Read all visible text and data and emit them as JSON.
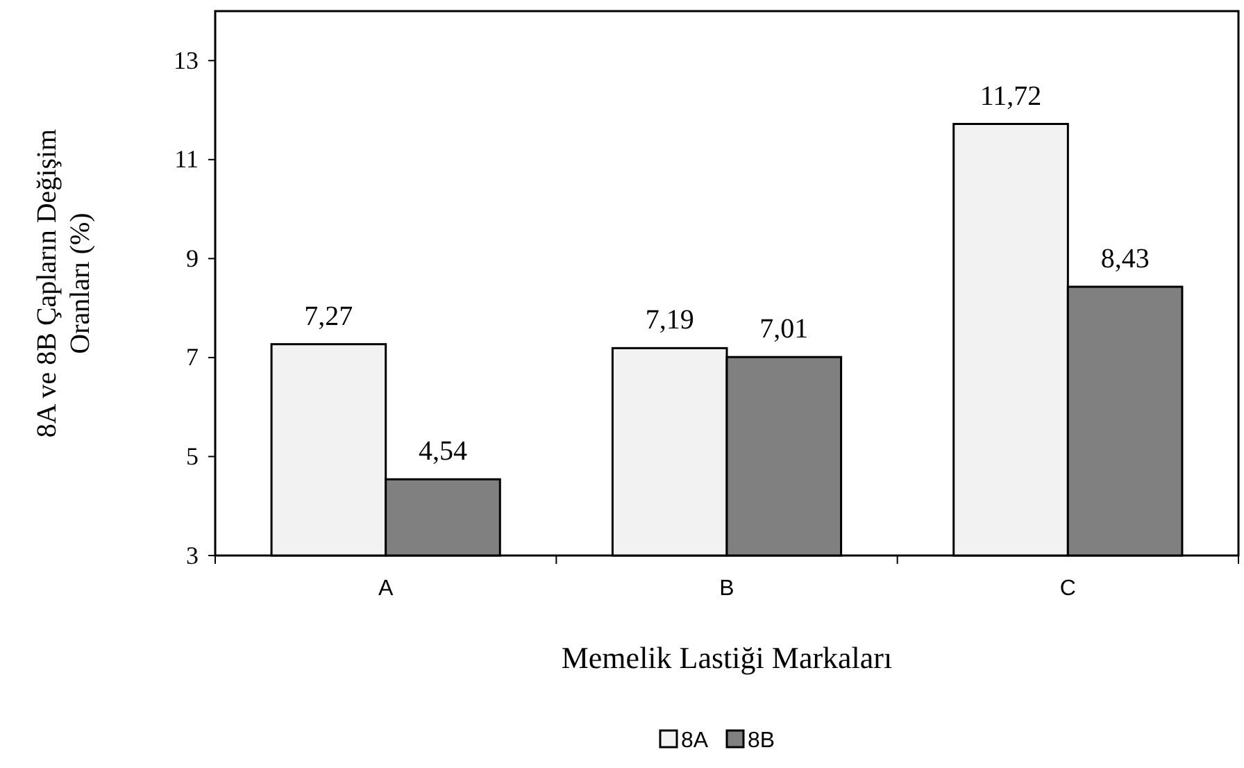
{
  "chart_data": {
    "type": "bar",
    "xlabel": "Memelik Lastiği Markaları",
    "ylabel": "8A ve 8B Çapların Değişim\nOranları (%)",
    "categories": [
      "A",
      "B",
      "C"
    ],
    "series": [
      {
        "name": "8A",
        "color": "#f2f2f2",
        "values": [
          7.27,
          7.19,
          11.72
        ],
        "value_labels": [
          "7,27",
          "7,19",
          "11,72"
        ]
      },
      {
        "name": "8B",
        "color": "#808080",
        "values": [
          4.54,
          7.01,
          8.43
        ],
        "value_labels": [
          "4,54",
          "7,01",
          "8,43"
        ]
      }
    ],
    "ylim": [
      3,
      14
    ],
    "yticks": [
      3,
      5,
      7,
      9,
      11,
      13
    ],
    "grid": false,
    "legend": "bottom"
  }
}
